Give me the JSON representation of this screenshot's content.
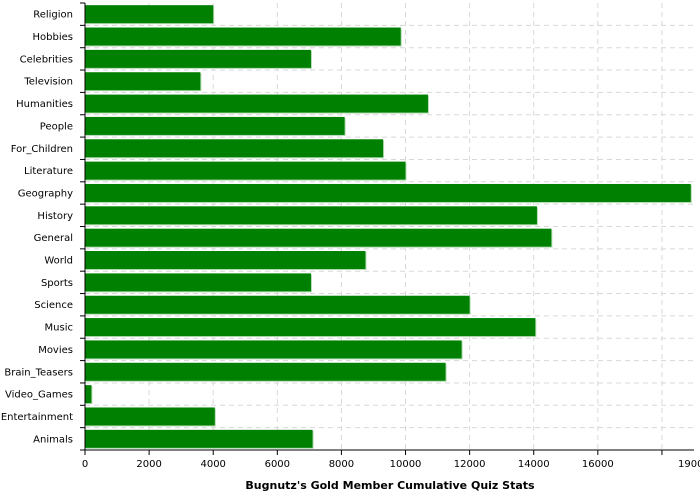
{
  "chart_data": {
    "type": "bar",
    "orientation": "horizontal",
    "title": "",
    "xlabel": "Bugnutz's Gold Member Cumulative Quiz Stats",
    "ylabel": "",
    "categories": [
      "Religion",
      "Hobbies",
      "Celebrities",
      "Television",
      "Humanities",
      "People",
      "For_Children",
      "Literature",
      "Geography",
      "History",
      "General",
      "World",
      "Sports",
      "Science",
      "Music",
      "Movies",
      "Brain_Teasers",
      "Video_Games",
      "Entertainment",
      "Animals"
    ],
    "values": [
      4000,
      9850,
      7050,
      3600,
      10700,
      8100,
      9300,
      10000,
      18900,
      14100,
      14550,
      8750,
      7050,
      12000,
      14050,
      11750,
      11250,
      200,
      4050,
      7100
    ],
    "xlim": [
      0,
      19000
    ],
    "xticks": [
      0,
      2000,
      4000,
      6000,
      8000,
      10000,
      12000,
      14000,
      16000
    ],
    "xtick_labels": [
      "0",
      "2000",
      "4000",
      "6000",
      "8000",
      "10000",
      "12000",
      "14000",
      "16000"
    ],
    "edge_tick_label": "1900",
    "grid": true,
    "bar_color": "#008000"
  }
}
